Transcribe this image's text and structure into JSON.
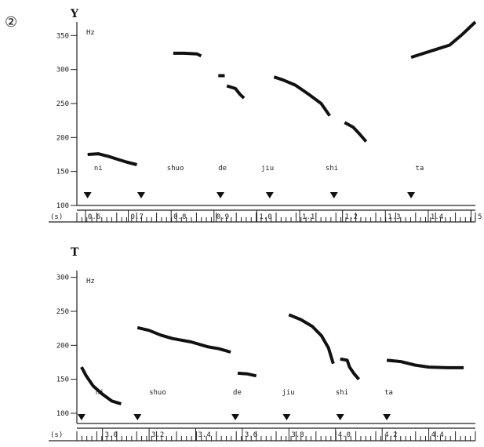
{
  "figure": {
    "number_label": "②"
  },
  "chart_data": [
    {
      "type": "line",
      "panel_label": "Y",
      "unit": "Hz",
      "time_unit": "(s)",
      "ylim": [
        100,
        370
      ],
      "xlim": [
        0.58,
        1.51
      ],
      "yticks": [
        "350",
        "300",
        "250",
        "200",
        "150",
        "100"
      ],
      "ytick_values": [
        350,
        300,
        250,
        200,
        150,
        100
      ],
      "xticks": [
        "0.6",
        "0.7",
        "0.8",
        "0.9",
        "1.0",
        "1.1",
        "1.2",
        "1.3",
        "1.4",
        ".5"
      ],
      "xtick_values": [
        0.6,
        0.7,
        0.8,
        0.9,
        1.0,
        1.1,
        1.2,
        1.3,
        1.4,
        1.5
      ],
      "syllables": [
        {
          "text": "ni",
          "x": 0.62,
          "marker": 0.605
        },
        {
          "text": "shuo",
          "x": 0.79,
          "marker": 0.73
        },
        {
          "text": "de",
          "x": 0.91,
          "marker": 0.915
        },
        {
          "text": "jiu",
          "x": 1.01,
          "marker": 1.03
        },
        {
          "text": "shi",
          "x": 1.16,
          "marker": 1.18
        },
        {
          "text": "ta",
          "x": 1.37,
          "marker": 1.36
        }
      ],
      "series": [
        {
          "x": [
            0.605,
            0.63,
            0.655,
            0.675,
            0.695,
            0.72
          ],
          "y": [
            175,
            176,
            172,
            168,
            164,
            160
          ]
        },
        {
          "x": [
            0.805,
            0.83,
            0.86,
            0.87
          ],
          "y": [
            324,
            324,
            323,
            320
          ]
        },
        {
          "x": [
            0.91,
            0.925
          ],
          "y": [
            291,
            291
          ]
        },
        {
          "x": [
            0.93,
            0.95,
            0.96,
            0.97
          ],
          "y": [
            276,
            272,
            264,
            258
          ]
        },
        {
          "x": [
            1.04,
            1.06,
            1.09,
            1.12,
            1.15,
            1.17
          ],
          "y": [
            289,
            285,
            277,
            264,
            250,
            232
          ]
        },
        {
          "x": [
            1.205,
            1.225,
            1.24,
            1.255
          ],
          "y": [
            222,
            215,
            205,
            194
          ]
        },
        {
          "x": [
            1.36,
            1.38,
            1.42,
            1.45,
            1.48,
            1.51
          ],
          "y": [
            318,
            322,
            330,
            336,
            352,
            370
          ]
        }
      ]
    },
    {
      "type": "line",
      "panel_label": "T",
      "unit": "Hz",
      "time_unit": "(s)",
      "ylim": [
        85,
        310
      ],
      "xlim": [
        2.89,
        4.6
      ],
      "yticks": [
        "300",
        "250",
        "200",
        "150",
        "100"
      ],
      "ytick_values": [
        300,
        250,
        200,
        150,
        100
      ],
      "xticks": [
        "3.0",
        "3.2",
        "3.4",
        "3.6",
        "3.8",
        "4.0",
        "4.2",
        "4.4"
      ],
      "xtick_values": [
        3.0,
        3.2,
        3.4,
        3.6,
        3.8,
        4.0,
        4.2,
        4.4
      ],
      "syllables": [
        {
          "text": "ni",
          "x": 2.97,
          "marker": 2.91
        },
        {
          "text": "shuo",
          "x": 3.2,
          "marker": 3.15
        },
        {
          "text": "de",
          "x": 3.56,
          "marker": 3.57
        },
        {
          "text": "jiu",
          "x": 3.77,
          "marker": 3.79
        },
        {
          "text": "shi",
          "x": 4.0,
          "marker": 4.02
        },
        {
          "text": "ta",
          "x": 4.21,
          "marker": 4.22
        }
      ],
      "series": [
        {
          "x": [
            2.91,
            2.93,
            2.96,
            3.0,
            3.04,
            3.08
          ],
          "y": [
            168,
            155,
            140,
            128,
            118,
            114
          ]
        },
        {
          "x": [
            3.15,
            3.2,
            3.25,
            3.3,
            3.38,
            3.45,
            3.5,
            3.55
          ],
          "y": [
            226,
            222,
            215,
            210,
            205,
            198,
            195,
            190
          ]
        },
        {
          "x": [
            3.58,
            3.62,
            3.66
          ],
          "y": [
            159,
            158,
            155
          ]
        },
        {
          "x": [
            3.8,
            3.85,
            3.9,
            3.94,
            3.97,
            3.99
          ],
          "y": [
            245,
            238,
            228,
            214,
            196,
            173
          ]
        },
        {
          "x": [
            4.02,
            4.05,
            4.06,
            4.08,
            4.1
          ],
          "y": [
            180,
            178,
            168,
            158,
            150
          ]
        },
        {
          "x": [
            4.22,
            4.28,
            4.34,
            4.4,
            4.48,
            4.55
          ],
          "y": [
            178,
            176,
            171,
            168,
            167,
            167
          ]
        }
      ]
    }
  ]
}
